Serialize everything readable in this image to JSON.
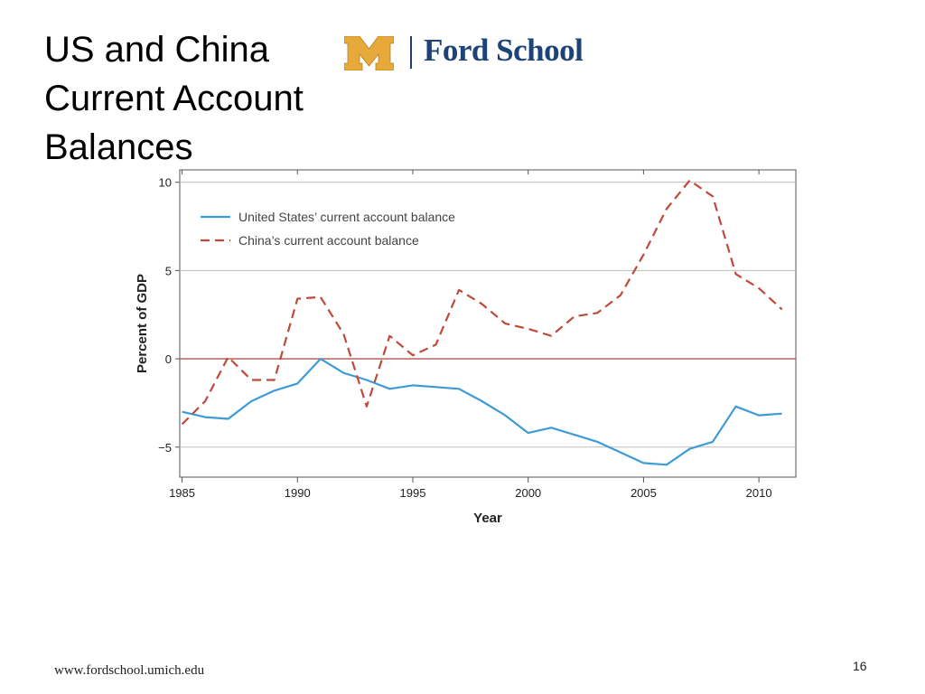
{
  "slide": {
    "title_lines": [
      "US and China",
      "Current Account",
      "Balances"
    ],
    "logo_text": "Ford School",
    "footer_url": "www.fordschool.umich.edu",
    "page_number": "16"
  },
  "colors": {
    "us_line": "#3e9bd5",
    "china_line": "#bf4a3b",
    "zero_line": "#b5524a",
    "logo_maize": "#e6a93a",
    "logo_blue": "#1d4478"
  },
  "chart_data": {
    "type": "line",
    "title": "",
    "xlabel": "Year",
    "ylabel": "Percent of GDP",
    "xlim": [
      1984.9,
      2011.6
    ],
    "ylim": [
      -6.7,
      10.7
    ],
    "x_ticks": [
      1985,
      1990,
      1995,
      2000,
      2005,
      2010
    ],
    "y_ticks": [
      10,
      5,
      0,
      -5
    ],
    "y_tick_labels": [
      "10",
      "5",
      "0",
      "−5"
    ],
    "grid": "horizontal",
    "legend_position": "top-left",
    "series": [
      {
        "name": "United States’ current account balance",
        "style": "solid",
        "x": [
          1985,
          1986,
          1987,
          1988,
          1989,
          1990,
          1991,
          1992,
          1993,
          1994,
          1995,
          1996,
          1997,
          1998,
          1999,
          2000,
          2001,
          2002,
          2003,
          2004,
          2005,
          2006,
          2007,
          2008,
          2009,
          2010,
          2011
        ],
        "values": [
          -3.0,
          -3.3,
          -3.4,
          -2.4,
          -1.8,
          -1.4,
          0.0,
          -0.8,
          -1.2,
          -1.7,
          -1.5,
          -1.6,
          -1.7,
          -2.4,
          -3.2,
          -4.2,
          -3.9,
          -4.3,
          -4.7,
          -5.3,
          -5.9,
          -6.0,
          -5.1,
          -4.7,
          -2.7,
          -3.2,
          -3.1
        ]
      },
      {
        "name": "China’s current account balance",
        "style": "dashed",
        "x": [
          1985,
          1986,
          1987,
          1988,
          1989,
          1990,
          1991,
          1992,
          1993,
          1994,
          1995,
          1996,
          1997,
          1998,
          1999,
          2000,
          2001,
          2002,
          2003,
          2004,
          2005,
          2006,
          2007,
          2008,
          2009,
          2010,
          2011
        ],
        "values": [
          -3.7,
          -2.4,
          0.1,
          -1.2,
          -1.2,
          3.4,
          3.5,
          1.4,
          -2.7,
          1.3,
          0.2,
          0.8,
          3.9,
          3.1,
          2.0,
          1.7,
          1.3,
          2.4,
          2.6,
          3.6,
          5.9,
          8.5,
          10.1,
          9.2,
          4.8,
          4.0,
          2.8
        ]
      }
    ]
  }
}
